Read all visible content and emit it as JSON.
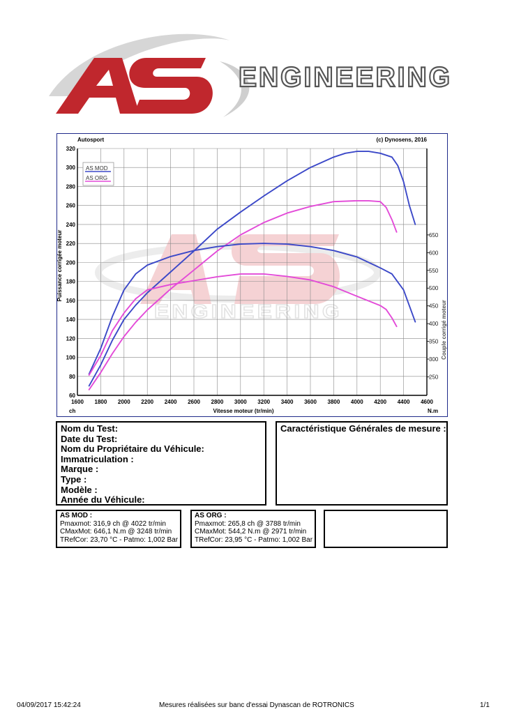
{
  "logo": {
    "mark": "AS",
    "word": "ENGINEERING"
  },
  "chart_data": {
    "type": "line",
    "header_left": "Autosport",
    "header_right": "(c) Dynosens, 2016",
    "xlabel": "Vitesse moteur (tr/min)",
    "x_unit_left": "ch",
    "x_unit_right": "N.m",
    "ylabel_left": "Puissance corrigée moteur",
    "ylabel_right": "Couple corrigé moteur",
    "xlim": [
      1600,
      4600
    ],
    "ylim_left": [
      60,
      320
    ],
    "ylim_right": [
      250,
      650
    ],
    "x_ticks": [
      1600,
      1800,
      2000,
      2200,
      2400,
      2600,
      2800,
      3000,
      3200,
      3400,
      3600,
      3800,
      4000,
      4200,
      4400,
      4600
    ],
    "y_ticks_left": [
      60,
      80,
      100,
      120,
      140,
      160,
      180,
      200,
      220,
      240,
      260,
      280,
      300,
      320
    ],
    "y_ticks_right": [
      250,
      300,
      350,
      400,
      450,
      500,
      550,
      600,
      650
    ],
    "grid": true,
    "legend_position": "top-left",
    "series": [
      {
        "name": "AS MOD",
        "kind": "power",
        "color": "#3b48c8",
        "points": [
          [
            1700,
            70
          ],
          [
            1800,
            92
          ],
          [
            1900,
            118
          ],
          [
            2000,
            140
          ],
          [
            2100,
            155
          ],
          [
            2200,
            168
          ],
          [
            2400,
            190
          ],
          [
            2600,
            212
          ],
          [
            2800,
            235
          ],
          [
            3000,
            253
          ],
          [
            3200,
            270
          ],
          [
            3400,
            286
          ],
          [
            3600,
            300
          ],
          [
            3800,
            311
          ],
          [
            3900,
            315
          ],
          [
            4000,
            317
          ],
          [
            4100,
            317
          ],
          [
            4200,
            315
          ],
          [
            4300,
            311
          ],
          [
            4350,
            302
          ],
          [
            4400,
            285
          ],
          [
            4450,
            260
          ],
          [
            4500,
            240
          ]
        ]
      },
      {
        "name": "AS ORG",
        "kind": "power",
        "color": "#e34ad8",
        "points": [
          [
            1700,
            66
          ],
          [
            1800,
            84
          ],
          [
            1900,
            104
          ],
          [
            2000,
            122
          ],
          [
            2100,
            137
          ],
          [
            2200,
            150
          ],
          [
            2400,
            172
          ],
          [
            2600,
            192
          ],
          [
            2800,
            212
          ],
          [
            3000,
            229
          ],
          [
            3200,
            242
          ],
          [
            3400,
            252
          ],
          [
            3600,
            259
          ],
          [
            3800,
            264
          ],
          [
            4000,
            265
          ],
          [
            4100,
            265
          ],
          [
            4200,
            264
          ],
          [
            4250,
            258
          ],
          [
            4300,
            245
          ],
          [
            4340,
            232
          ]
        ]
      },
      {
        "name": "AS MOD",
        "kind": "torque",
        "color": "#3b48c8",
        "points": [
          [
            1700,
            258
          ],
          [
            1800,
            330
          ],
          [
            1900,
            420
          ],
          [
            2000,
            495
          ],
          [
            2100,
            540
          ],
          [
            2200,
            565
          ],
          [
            2400,
            589
          ],
          [
            2600,
            606
          ],
          [
            2800,
            617
          ],
          [
            3000,
            624
          ],
          [
            3200,
            626
          ],
          [
            3400,
            624
          ],
          [
            3600,
            617
          ],
          [
            3800,
            606
          ],
          [
            4000,
            588
          ],
          [
            4200,
            557
          ],
          [
            4300,
            540
          ],
          [
            4400,
            495
          ],
          [
            4500,
            405
          ]
        ]
      },
      {
        "name": "AS ORG",
        "kind": "torque",
        "color": "#e34ad8",
        "points": [
          [
            1700,
            255
          ],
          [
            1800,
            310
          ],
          [
            1900,
            380
          ],
          [
            2000,
            430
          ],
          [
            2100,
            470
          ],
          [
            2200,
            495
          ],
          [
            2400,
            510
          ],
          [
            2600,
            521
          ],
          [
            2800,
            532
          ],
          [
            3000,
            540
          ],
          [
            3200,
            540
          ],
          [
            3400,
            533
          ],
          [
            3600,
            523
          ],
          [
            3800,
            504
          ],
          [
            4000,
            477
          ],
          [
            4200,
            451
          ],
          [
            4250,
            440
          ],
          [
            4300,
            416
          ],
          [
            4340,
            392
          ]
        ]
      }
    ]
  },
  "test_info": {
    "lines": [
      "Nom du Test:",
      "Date du Test:",
      "Nom du Propriétaire du Véhicule:",
      "Immatriculation  :",
      "Marque  :",
      "Type  :",
      "Modèle  :",
      "Année du Véhicule:"
    ],
    "right_title": "Caractéristique Générales de mesure :"
  },
  "results": {
    "mod": {
      "title": "AS MOD :",
      "lines": [
        "Pmaxmot: 316,9 ch @ 4022 tr/min",
        "CMaxMot: 646,1 N.m @ 3248 tr/min",
        "TRefCor: 23,70 °C - Patmo: 1,002 Bar"
      ]
    },
    "org": {
      "title": "AS  ORG :",
      "lines": [
        "Pmaxmot: 265,8 ch @ 3788 tr/min",
        "CMaxMot: 544,2 N.m @ 2971 tr/min",
        "TRefCor: 23,95 °C - Patmo: 1,002 Bar"
      ]
    }
  },
  "footer": {
    "left": "04/09/2017 15:42:24",
    "center": "Mesures réalisées sur banc d'essai Dynascan de ROTRONICS",
    "right": "1/1"
  }
}
